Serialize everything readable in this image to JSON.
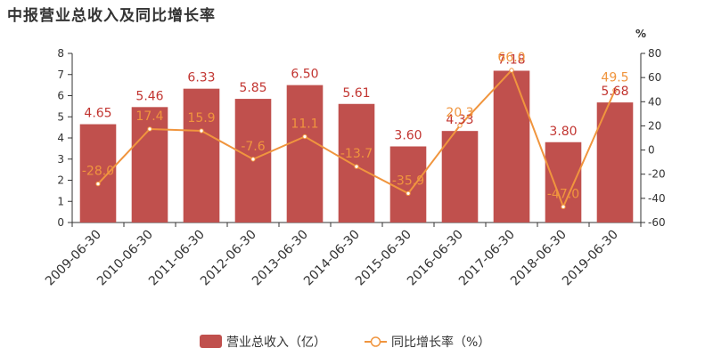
{
  "chart_data": {
    "type": "bar",
    "title": "中报营业总收入及同比增长率",
    "categories": [
      "2009-06-30",
      "2010-06-30",
      "2011-06-30",
      "2012-06-30",
      "2013-06-30",
      "2014-06-30",
      "2015-06-30",
      "2016-06-30",
      "2017-06-30",
      "2018-06-30",
      "2019-06-30"
    ],
    "series": [
      {
        "name": "营业总收入（亿）",
        "type": "bar",
        "axis": "left",
        "color": "#c0504d",
        "values": [
          4.65,
          5.46,
          6.33,
          5.85,
          6.5,
          5.61,
          3.6,
          4.33,
          7.18,
          3.8,
          5.68
        ],
        "labels": [
          "4.65",
          "5.46",
          "6.33",
          "5.85",
          "6.50",
          "5.61",
          "3.60",
          "4.33",
          "7.18",
          "3.80",
          "5.68"
        ]
      },
      {
        "name": "同比增长率（%）",
        "type": "line",
        "axis": "right",
        "color": "#f0953e",
        "values": [
          -28.0,
          17.4,
          15.9,
          -7.6,
          11.1,
          -13.7,
          -35.9,
          20.3,
          66.0,
          -47.0,
          49.5
        ],
        "labels": [
          "-28.0",
          "17.4",
          "15.9",
          "-7.6",
          "11.1",
          "-13.7",
          "-35.9",
          "20.3",
          "66.0",
          "-47.0",
          "49.5"
        ]
      }
    ],
    "y_left": {
      "min": 0,
      "max": 8,
      "ticks": [
        "0",
        "1",
        "2",
        "3",
        "4",
        "5",
        "6",
        "7",
        "8"
      ]
    },
    "y_right": {
      "min": -60,
      "max": 80,
      "ticks": [
        "-60",
        "-40",
        "-20",
        "0",
        "20",
        "40",
        "60",
        "80"
      ],
      "unit": "%"
    },
    "grid": false,
    "legend_position": "bottom"
  }
}
